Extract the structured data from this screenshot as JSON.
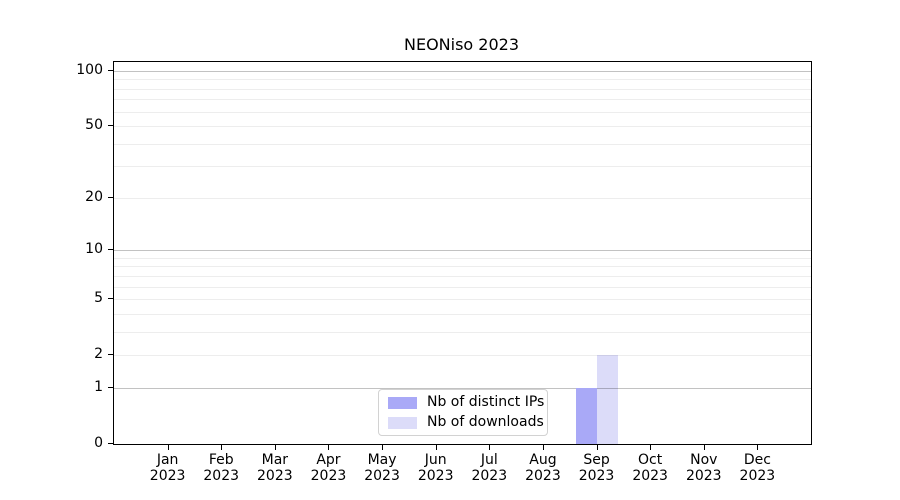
{
  "chart_data": {
    "type": "bar",
    "title": "NEONiso 2023",
    "categories": [
      "Jan 2023",
      "Feb 2023",
      "Mar 2023",
      "Apr 2023",
      "May 2023",
      "Jun 2023",
      "Jul 2023",
      "Aug 2023",
      "Sep 2023",
      "Oct 2023",
      "Nov 2023",
      "Dec 2023"
    ],
    "series": [
      {
        "name": "Nb of distinct IPs",
        "color": "#a9a9f7",
        "values": [
          0,
          0,
          0,
          0,
          0,
          0,
          0,
          0,
          1,
          0,
          0,
          0
        ]
      },
      {
        "name": "Nb of downloads",
        "color": "#dcdcf9",
        "values": [
          0,
          0,
          0,
          0,
          0,
          0,
          0,
          0,
          2,
          0,
          0,
          0
        ]
      }
    ],
    "xlabel": "",
    "ylabel": "",
    "yscale": "log1p",
    "ylim": [
      0,
      112
    ],
    "yticks": [
      0,
      1,
      2,
      5,
      10,
      20,
      50,
      100
    ],
    "major_gridlines": [
      1,
      10,
      100
    ],
    "minor_gridlines": [
      2,
      3,
      4,
      5,
      6,
      7,
      8,
      9,
      20,
      30,
      40,
      50,
      60,
      70,
      80,
      90
    ],
    "grid": true,
    "legend_position": "lower center"
  },
  "colors": {
    "background": "#ffffff",
    "axis": "#000000",
    "major_grid": "#c2c2c2",
    "minor_grid": "#ededed",
    "legend_border": "#d2d2d2",
    "text": "#000000"
  }
}
